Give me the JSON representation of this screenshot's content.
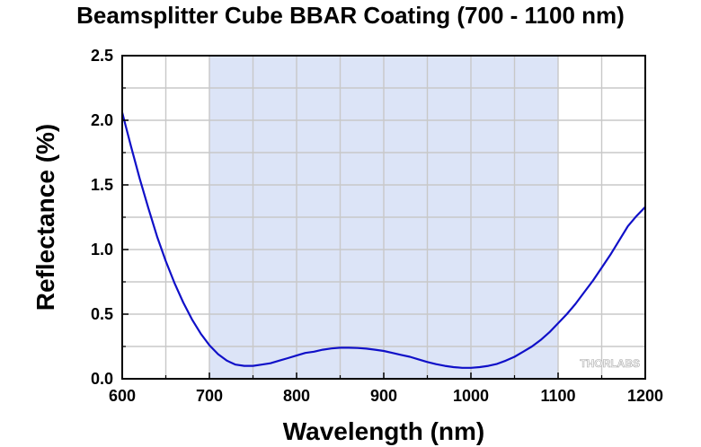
{
  "chart_data": {
    "type": "line",
    "title": "Beamsplitter Cube BBAR Coating (700 - 1100 nm)",
    "xlabel": "Wavelength (nm)",
    "ylabel": "Reflectance (%)",
    "xlim": [
      600,
      1200
    ],
    "ylim": [
      0.0,
      2.5
    ],
    "xticks": [
      600,
      700,
      800,
      900,
      1000,
      1100,
      1200
    ],
    "xtick_labels": [
      "600",
      "700",
      "800",
      "900",
      "1000",
      "1100",
      "1200"
    ],
    "yticks": [
      0.0,
      0.5,
      1.0,
      1.5,
      2.0,
      2.5
    ],
    "ytick_labels": [
      "0.0",
      "0.5",
      "1.0",
      "1.5",
      "2.0",
      "2.5"
    ],
    "grid": true,
    "shaded_band": {
      "x_start": 700,
      "x_end": 1100,
      "color": "#dce4f7"
    },
    "line_color": "#1010c8",
    "watermark": "THORLABS",
    "series": [
      {
        "x": [
          600,
          610,
          620,
          630,
          640,
          650,
          660,
          670,
          680,
          690,
          700,
          710,
          720,
          730,
          740,
          750,
          760,
          770,
          780,
          790,
          800,
          810,
          820,
          830,
          840,
          850,
          860,
          870,
          880,
          890,
          900,
          910,
          920,
          930,
          940,
          950,
          960,
          970,
          980,
          990,
          1000,
          1010,
          1020,
          1030,
          1040,
          1050,
          1060,
          1070,
          1080,
          1090,
          1100,
          1110,
          1120,
          1130,
          1140,
          1150,
          1160,
          1170,
          1180,
          1190,
          1200
        ],
        "y": [
          2.06,
          1.8,
          1.55,
          1.32,
          1.1,
          0.91,
          0.74,
          0.59,
          0.46,
          0.35,
          0.26,
          0.19,
          0.14,
          0.11,
          0.1,
          0.1,
          0.11,
          0.12,
          0.14,
          0.16,
          0.18,
          0.2,
          0.21,
          0.225,
          0.235,
          0.24,
          0.24,
          0.238,
          0.233,
          0.225,
          0.215,
          0.2,
          0.185,
          0.17,
          0.15,
          0.13,
          0.113,
          0.1,
          0.09,
          0.085,
          0.085,
          0.09,
          0.1,
          0.115,
          0.14,
          0.17,
          0.21,
          0.25,
          0.3,
          0.36,
          0.43,
          0.5,
          0.58,
          0.67,
          0.76,
          0.86,
          0.96,
          1.07,
          1.18,
          1.26,
          1.33
        ]
      }
    ]
  }
}
